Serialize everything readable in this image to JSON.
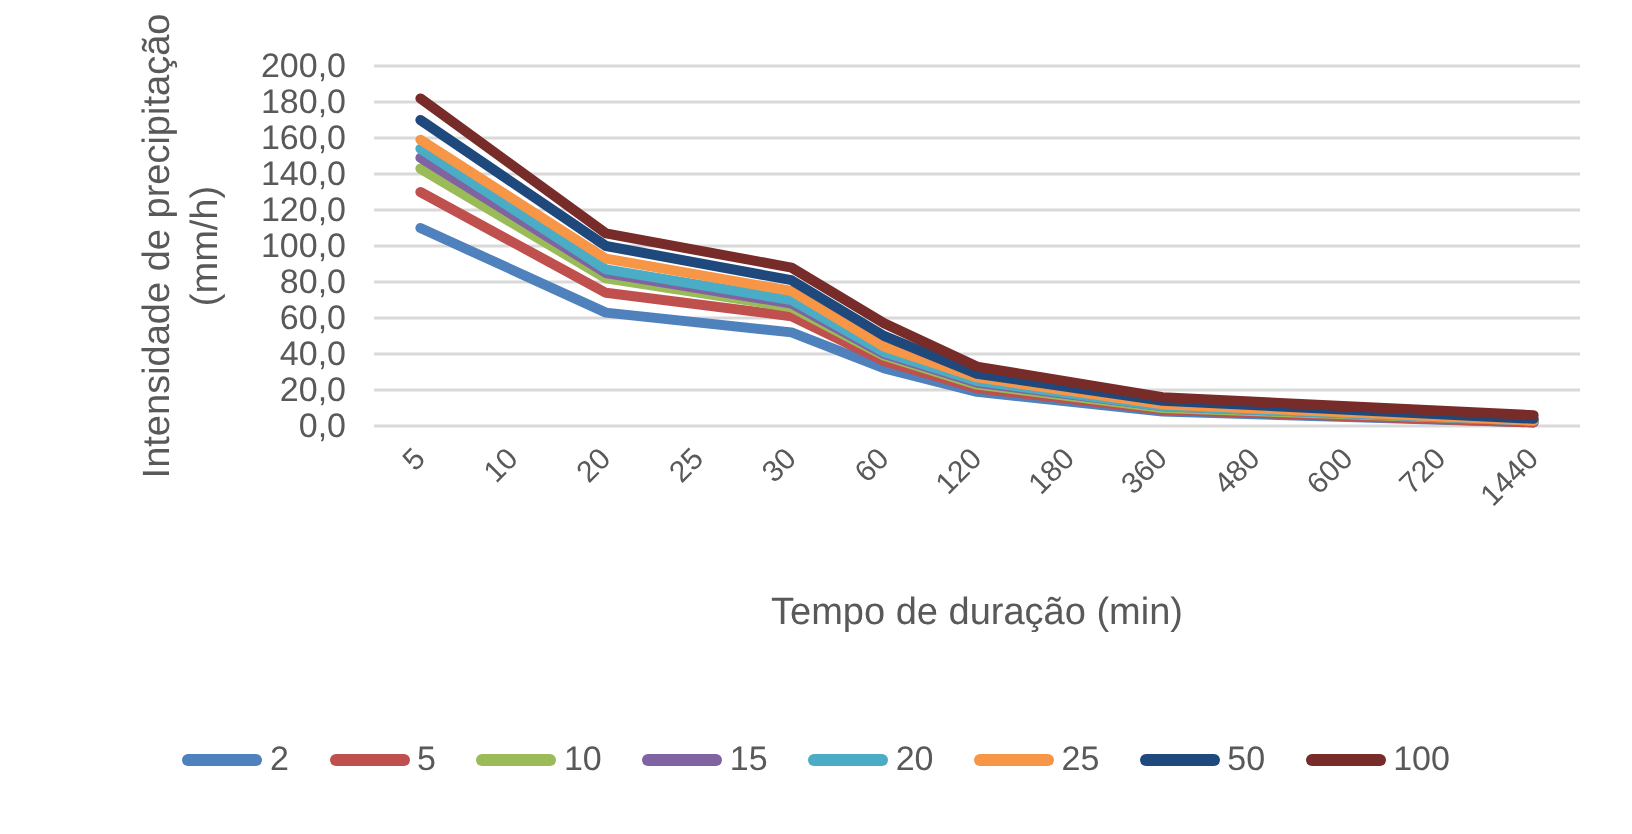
{
  "chart_data": {
    "type": "line",
    "xlabel": "Tempo de duração (min)",
    "ylabel": "Intensidade de precipitação (mm/h)",
    "categories": [
      "5",
      "10",
      "20",
      "25",
      "30",
      "60",
      "120",
      "180",
      "360",
      "480",
      "600",
      "720",
      "1440"
    ],
    "ylim": [
      0,
      200
    ],
    "yticks": [
      {
        "value": 0,
        "label": "0,0"
      },
      {
        "value": 20,
        "label": "20,0"
      },
      {
        "value": 40,
        "label": "40,0"
      },
      {
        "value": 60,
        "label": "60,0"
      },
      {
        "value": 80,
        "label": "80,0"
      },
      {
        "value": 100,
        "label": "100,0"
      },
      {
        "value": 120,
        "label": "120,0"
      },
      {
        "value": 140,
        "label": "140,0"
      },
      {
        "value": 160,
        "label": "160,0"
      },
      {
        "value": 180,
        "label": "180,0"
      },
      {
        "value": 200,
        "label": "200,0"
      }
    ],
    "grid": "y",
    "legend": "bottom",
    "marker": "none",
    "line_style": "solid",
    "series": [
      {
        "name": "2",
        "color": "#4f81bd",
        "values": [
          110,
          null,
          63,
          null,
          52,
          32,
          19,
          null,
          8,
          null,
          null,
          null,
          2
        ]
      },
      {
        "name": "5",
        "color": "#c0504d",
        "values": [
          130,
          null,
          74,
          null,
          61,
          36,
          21,
          null,
          9,
          null,
          null,
          null,
          2
        ]
      },
      {
        "name": "10",
        "color": "#9bbb59",
        "values": [
          143,
          null,
          82,
          null,
          66,
          39,
          23,
          null,
          10,
          null,
          null,
          null,
          3
        ]
      },
      {
        "name": "15",
        "color": "#8064a2",
        "values": [
          149,
          null,
          85,
          null,
          68,
          40,
          24,
          null,
          11,
          null,
          null,
          null,
          3
        ]
      },
      {
        "name": "20",
        "color": "#4bacc6",
        "values": [
          154,
          null,
          87,
          null,
          70,
          41,
          25,
          null,
          11,
          null,
          null,
          null,
          3
        ]
      },
      {
        "name": "25",
        "color": "#f79646",
        "values": [
          159,
          null,
          93,
          null,
          75,
          44,
          27,
          null,
          12,
          null,
          null,
          null,
          3
        ]
      },
      {
        "name": "50",
        "color": "#1f497d",
        "values": [
          170,
          null,
          100,
          null,
          81,
          50,
          29,
          null,
          14,
          null,
          null,
          null,
          4
        ]
      },
      {
        "name": "100",
        "color": "#772c2a",
        "values": [
          182,
          null,
          107,
          null,
          88,
          57,
          33,
          null,
          16,
          null,
          null,
          null,
          6
        ]
      }
    ]
  }
}
